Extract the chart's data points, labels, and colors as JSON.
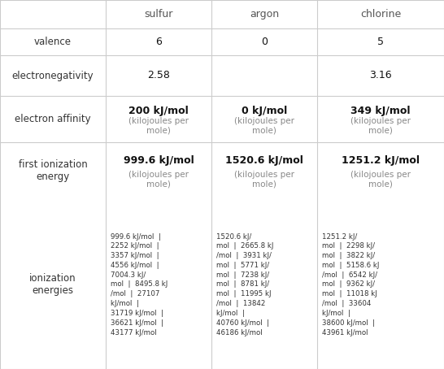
{
  "columns": [
    "",
    "sulfur",
    "argon",
    "chlorine"
  ],
  "rows": [
    {
      "label": "valence",
      "sulfur": "6",
      "argon": "0",
      "chlorine": "5"
    },
    {
      "label": "electronegativity",
      "sulfur": "2.58",
      "argon": "",
      "chlorine": "3.16"
    },
    {
      "label": "electron affinity",
      "sulfur": "200 kJ/mol\n(kilojoules per\nmole)",
      "argon": "0 kJ/mol\n(kilojoules per\nmole)",
      "chlorine": "349 kJ/mol\n(kilojoules per\nmole)"
    },
    {
      "label": "first ionization\nenergy",
      "sulfur": "999.6 kJ/mol\n(kilojoules per\nmole)",
      "argon": "1520.6 kJ/mol\n(kilojoules per\nmole)",
      "chlorine": "1251.2 kJ/mol\n(kilojoules per\nmole)"
    },
    {
      "label": "ionization\nenergies",
      "sulfur": "999.6 kJ/mol  |\n2252 kJ/mol  |\n3357 kJ/mol  |\n4556 kJ/mol  |\n7004.3 kJ/\nmol  |  8495.8 kJ\n/mol  |  27107\nkJ/mol  |\n31719 kJ/mol  |\n36621 kJ/mol  |\n43177 kJ/mol",
      "argon": "1520.6 kJ/\nmol  |  2665.8 kJ\n/mol  |  3931 kJ/\nmol  |  5771 kJ/\nmol  |  7238 kJ/\nmol  |  8781 kJ/\nmol  |  11995 kJ\n/mol  |  13842\nkJ/mol  |\n40760 kJ/mol  |\n46186 kJ/mol",
      "chlorine": "1251.2 kJ/\nmol  |  2298 kJ/\nmol  |  3822 kJ/\nmol  |  5158.6 kJ\n/mol  |  6542 kJ/\nmol  |  9362 kJ/\nmol  |  11018 kJ\n/mol  |  33604\nkJ/mol  |\n38600 kJ/mol  |\n43961 kJ/mol"
    }
  ],
  "header_bg": "#ffffff",
  "cell_bg": "#ffffff",
  "border_color": "#cccccc",
  "text_color": "#333333",
  "header_text_color": "#555555",
  "bold_value_color": "#000000",
  "sub_text_color": "#888888"
}
